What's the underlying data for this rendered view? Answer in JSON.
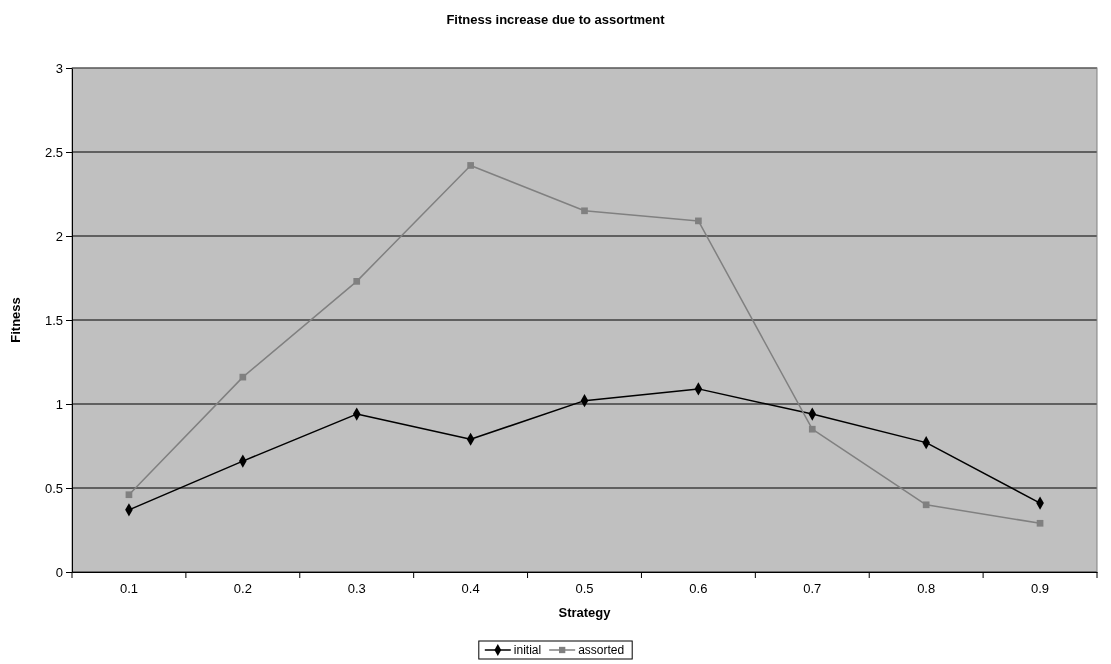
{
  "chart_data": {
    "type": "line",
    "title": "Fitness increase due to assortment",
    "xlabel": "Strategy",
    "ylabel": "Fitness",
    "categories": [
      "0.1",
      "0.2",
      "0.3",
      "0.4",
      "0.5",
      "0.6",
      "0.7",
      "0.8",
      "0.9"
    ],
    "series": [
      {
        "name": "initial",
        "color": "#000000",
        "marker": "diamond",
        "values": [
          0.37,
          0.66,
          0.94,
          0.79,
          1.02,
          1.09,
          0.94,
          0.77,
          0.41
        ]
      },
      {
        "name": "assorted",
        "color": "#808080",
        "marker": "square",
        "values": [
          0.46,
          1.16,
          1.73,
          2.42,
          2.15,
          2.09,
          0.85,
          0.4,
          0.29
        ]
      }
    ],
    "ylim": [
      0,
      3
    ],
    "yticks": [
      0,
      0.5,
      1,
      1.5,
      2,
      2.5,
      3
    ],
    "grid": "y",
    "legend": "bottom",
    "line_style": "solid"
  }
}
